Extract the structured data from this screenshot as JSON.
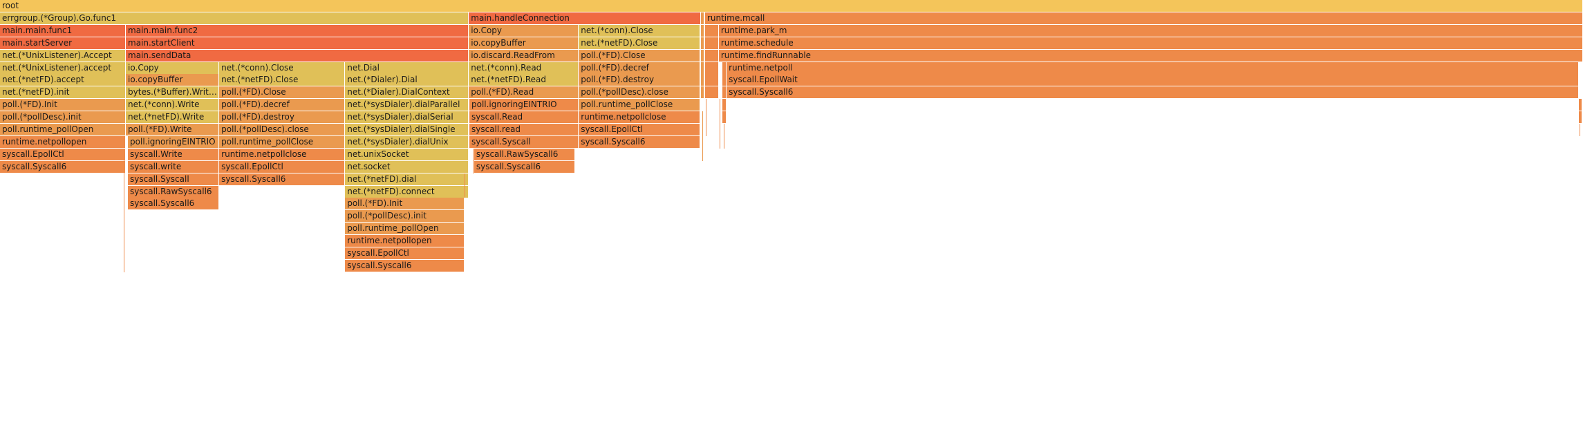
{
  "chart_data": {
    "type": "flamegraph",
    "title": "",
    "colors": {
      "yellow": "#e2b653",
      "gold": "#e0c058",
      "orange": "#ea9a4f",
      "deep": "#ee8a49",
      "red": "#f06a42"
    },
    "frames": [
      {
        "label": "root",
        "depth": 0,
        "start": 0,
        "span": 1.0,
        "color": "yellow"
      },
      {
        "label": "errgroup.(*Group).Go.func1",
        "depth": 1,
        "start": 0,
        "span": 0.2962,
        "color": "gold"
      },
      {
        "label": "main.handleConnection",
        "depth": 1,
        "start": 0.2962,
        "span": 0.1467,
        "color": "red"
      },
      {
        "label": "",
        "depth": 1,
        "start": 0.4429,
        "span": 0.0022,
        "color": "orange"
      },
      {
        "label": "runtime.mcall",
        "depth": 1,
        "start": 0.4454,
        "span": 0.5546,
        "color": "deep"
      },
      {
        "label": "main.main.func1",
        "depth": 2,
        "start": 0,
        "span": 0.0795,
        "color": "red"
      },
      {
        "label": "main.main.func2",
        "depth": 2,
        "start": 0.0795,
        "span": 0.2167,
        "color": "red"
      },
      {
        "label": "io.Copy",
        "depth": 2,
        "start": 0.2962,
        "span": 0.0694,
        "color": "orange"
      },
      {
        "label": "net.(*conn).Close",
        "depth": 2,
        "start": 0.3656,
        "span": 0.0769,
        "color": "gold"
      },
      {
        "label": "",
        "depth": 2,
        "start": 0.4429,
        "span": 0.0022,
        "color": "orange"
      },
      {
        "label": "",
        "depth": 2,
        "start": 0.4454,
        "span": 0.0087,
        "color": "deep"
      },
      {
        "label": "runtime.park_m",
        "depth": 2,
        "start": 0.4541,
        "span": 0.5459,
        "color": "deep"
      },
      {
        "label": "main.startServer",
        "depth": 3,
        "start": 0,
        "span": 0.0795,
        "color": "red"
      },
      {
        "label": "main.startClient",
        "depth": 3,
        "start": 0.0795,
        "span": 0.2167,
        "color": "red"
      },
      {
        "label": "io.copyBuffer",
        "depth": 3,
        "start": 0.2962,
        "span": 0.0694,
        "color": "orange"
      },
      {
        "label": "net.(*netFD).Close",
        "depth": 3,
        "start": 0.3656,
        "span": 0.0769,
        "color": "gold"
      },
      {
        "label": "",
        "depth": 3,
        "start": 0.4429,
        "span": 0.0022,
        "color": "orange"
      },
      {
        "label": "",
        "depth": 3,
        "start": 0.4454,
        "span": 0.0087,
        "color": "deep"
      },
      {
        "label": "runtime.schedule",
        "depth": 3,
        "start": 0.4541,
        "span": 0.5459,
        "color": "deep"
      },
      {
        "label": "net.(*UnixListener).Accept",
        "depth": 4,
        "start": 0,
        "span": 0.0795,
        "color": "gold"
      },
      {
        "label": "main.sendData",
        "depth": 4,
        "start": 0.0795,
        "span": 0.2167,
        "color": "red"
      },
      {
        "label": "io.discard.ReadFrom",
        "depth": 4,
        "start": 0.2962,
        "span": 0.0694,
        "color": "orange"
      },
      {
        "label": "poll.(*FD).Close",
        "depth": 4,
        "start": 0.3656,
        "span": 0.0769,
        "color": "orange"
      },
      {
        "label": "",
        "depth": 4,
        "start": 0.4429,
        "span": 0.0022,
        "color": "orange"
      },
      {
        "label": "",
        "depth": 4,
        "start": 0.4454,
        "span": 0.0087,
        "color": "deep"
      },
      {
        "label": "runtime.findRunnable",
        "depth": 4,
        "start": 0.4541,
        "span": 0.5459,
        "color": "deep"
      },
      {
        "label": "net.(*UnixListener).accept",
        "depth": 5,
        "start": 0,
        "span": 0.0795,
        "color": "gold"
      },
      {
        "label": "io.Copy",
        "depth": 5,
        "start": 0.0795,
        "span": 0.059,
        "color": "gold"
      },
      {
        "label": "net.(*conn).Close",
        "depth": 5,
        "start": 0.1385,
        "span": 0.0795,
        "color": "gold"
      },
      {
        "label": "net.Dial",
        "depth": 5,
        "start": 0.218,
        "span": 0.0782,
        "color": "gold"
      },
      {
        "label": "net.(*conn).Read",
        "depth": 5,
        "start": 0.2962,
        "span": 0.0694,
        "color": "gold"
      },
      {
        "label": "poll.(*FD).decref",
        "depth": 5,
        "start": 0.3656,
        "span": 0.0769,
        "color": "orange"
      },
      {
        "label": "",
        "depth": 5,
        "start": 0.4429,
        "span": 0.0022,
        "color": "orange"
      },
      {
        "label": "",
        "depth": 5,
        "start": 0.4454,
        "span": 0.0087,
        "color": "deep"
      },
      {
        "label": "",
        "depth": 5,
        "start": 0.4563,
        "span": 0.0026,
        "color": "deep"
      },
      {
        "label": "runtime.netpoll",
        "depth": 5,
        "start": 0.459,
        "span": 0.5384,
        "color": "deep"
      },
      {
        "label": "net.(*netFD).accept",
        "depth": 6,
        "start": 0,
        "span": 0.0795,
        "color": "gold"
      },
      {
        "label": "io.copyBuffer",
        "depth": 6,
        "start": 0.0795,
        "span": 0.059,
        "color": "orange"
      },
      {
        "label": "net.(*netFD).Close",
        "depth": 6,
        "start": 0.1385,
        "span": 0.0795,
        "color": "gold"
      },
      {
        "label": "net.(*Dialer).Dial",
        "depth": 6,
        "start": 0.218,
        "span": 0.0782,
        "color": "gold"
      },
      {
        "label": "net.(*netFD).Read",
        "depth": 6,
        "start": 0.2962,
        "span": 0.0694,
        "color": "gold"
      },
      {
        "label": "poll.(*FD).destroy",
        "depth": 6,
        "start": 0.3656,
        "span": 0.0769,
        "color": "orange"
      },
      {
        "label": "",
        "depth": 6,
        "start": 0.4429,
        "span": 0.0022,
        "color": "orange"
      },
      {
        "label": "",
        "depth": 6,
        "start": 0.4454,
        "span": 0.0087,
        "color": "deep"
      },
      {
        "label": "",
        "depth": 6,
        "start": 0.4563,
        "span": 0.0026,
        "color": "deep"
      },
      {
        "label": "syscall.EpollWait",
        "depth": 6,
        "start": 0.459,
        "span": 0.5384,
        "color": "deep"
      },
      {
        "label": "net.(*netFD).init",
        "depth": 7,
        "start": 0,
        "span": 0.0795,
        "color": "gold"
      },
      {
        "label": "bytes.(*Buffer).WriteTo",
        "depth": 7,
        "start": 0.0795,
        "span": 0.059,
        "color": "gold"
      },
      {
        "label": "poll.(*FD).Close",
        "depth": 7,
        "start": 0.1385,
        "span": 0.0795,
        "color": "orange"
      },
      {
        "label": "net.(*Dialer).DialContext",
        "depth": 7,
        "start": 0.218,
        "span": 0.0782,
        "color": "gold"
      },
      {
        "label": "poll.(*FD).Read",
        "depth": 7,
        "start": 0.2962,
        "span": 0.0694,
        "color": "orange"
      },
      {
        "label": "poll.(*pollDesc).close",
        "depth": 7,
        "start": 0.3656,
        "span": 0.0769,
        "color": "orange"
      },
      {
        "label": "",
        "depth": 7,
        "start": 0.4429,
        "span": 0.0022,
        "color": "orange"
      },
      {
        "label": "",
        "depth": 7,
        "start": 0.4454,
        "span": 0.0087,
        "color": "deep"
      },
      {
        "label": "",
        "depth": 7,
        "start": 0.4563,
        "span": 0.0026,
        "color": "deep"
      },
      {
        "label": "syscall.Syscall6",
        "depth": 7,
        "start": 0.459,
        "span": 0.5384,
        "color": "deep"
      },
      {
        "label": "poll.(*FD).Init",
        "depth": 8,
        "start": 0,
        "span": 0.0795,
        "color": "orange"
      },
      {
        "label": "net.(*conn).Write",
        "depth": 8,
        "start": 0.0795,
        "span": 0.059,
        "color": "gold"
      },
      {
        "label": "poll.(*FD).decref",
        "depth": 8,
        "start": 0.1385,
        "span": 0.0795,
        "color": "orange"
      },
      {
        "label": "net.(*sysDialer).dialParallel",
        "depth": 8,
        "start": 0.218,
        "span": 0.0782,
        "color": "gold"
      },
      {
        "label": "poll.ignoringEINTRIO",
        "depth": 8,
        "start": 0.2965,
        "span": 0.0691,
        "color": "deep"
      },
      {
        "label": "poll.runtime_pollClose",
        "depth": 8,
        "start": 0.3656,
        "span": 0.0769,
        "color": "orange"
      },
      {
        "label": "",
        "depth": 8,
        "start": 0.4563,
        "span": 0.0026,
        "color": "deep"
      },
      {
        "label": "",
        "depth": 8,
        "start": 0.9975,
        "span": 0.0022,
        "color": "deep"
      },
      {
        "label": "poll.(*pollDesc).init",
        "depth": 9,
        "start": 0,
        "span": 0.0795,
        "color": "orange"
      },
      {
        "label": "net.(*netFD).Write",
        "depth": 9,
        "start": 0.0795,
        "span": 0.059,
        "color": "gold"
      },
      {
        "label": "poll.(*FD).destroy",
        "depth": 9,
        "start": 0.1385,
        "span": 0.0795,
        "color": "orange"
      },
      {
        "label": "net.(*sysDialer).dialSerial",
        "depth": 9,
        "start": 0.218,
        "span": 0.0782,
        "color": "gold"
      },
      {
        "label": "syscall.Read",
        "depth": 9,
        "start": 0.2965,
        "span": 0.0691,
        "color": "deep"
      },
      {
        "label": "runtime.netpollclose",
        "depth": 9,
        "start": 0.3656,
        "span": 0.0769,
        "color": "deep"
      },
      {
        "label": "",
        "depth": 9,
        "start": 0.4563,
        "span": 0.0026,
        "color": "deep"
      },
      {
        "label": "",
        "depth": 9,
        "start": 0.9975,
        "span": 0.0022,
        "color": "deep"
      },
      {
        "label": "poll.runtime_pollOpen",
        "depth": 10,
        "start": 0,
        "span": 0.0795,
        "color": "orange"
      },
      {
        "label": "poll.(*FD).Write",
        "depth": 10,
        "start": 0.0795,
        "span": 0.059,
        "color": "orange"
      },
      {
        "label": "poll.(*pollDesc).close",
        "depth": 10,
        "start": 0.1385,
        "span": 0.0795,
        "color": "orange"
      },
      {
        "label": "net.(*sysDialer).dialSingle",
        "depth": 10,
        "start": 0.218,
        "span": 0.0782,
        "color": "gold"
      },
      {
        "label": "syscall.read",
        "depth": 10,
        "start": 0.2965,
        "span": 0.0691,
        "color": "deep"
      },
      {
        "label": "syscall.EpollCtl",
        "depth": 10,
        "start": 0.3656,
        "span": 0.0769,
        "color": "deep"
      },
      {
        "label": "runtime.netpollopen",
        "depth": 11,
        "start": 0,
        "span": 0.0795,
        "color": "deep"
      },
      {
        "label": "poll.ignoringEINTRIO",
        "depth": 11,
        "start": 0.0808,
        "span": 0.0577,
        "color": "orange"
      },
      {
        "label": "poll.runtime_pollClose",
        "depth": 11,
        "start": 0.1385,
        "span": 0.0795,
        "color": "orange"
      },
      {
        "label": "net.(*sysDialer).dialUnix",
        "depth": 11,
        "start": 0.218,
        "span": 0.0782,
        "color": "gold"
      },
      {
        "label": "syscall.Syscall",
        "depth": 11,
        "start": 0.2965,
        "span": 0.0691,
        "color": "deep"
      },
      {
        "label": "syscall.Syscall6",
        "depth": 11,
        "start": 0.3656,
        "span": 0.0769,
        "color": "deep"
      },
      {
        "label": "syscall.EpollCtl",
        "depth": 12,
        "start": 0,
        "span": 0.0795,
        "color": "deep"
      },
      {
        "label": "syscall.Write",
        "depth": 12,
        "start": 0.0808,
        "span": 0.0577,
        "color": "deep"
      },
      {
        "label": "runtime.netpollclose",
        "depth": 12,
        "start": 0.1385,
        "span": 0.0795,
        "color": "deep"
      },
      {
        "label": "net.unixSocket",
        "depth": 12,
        "start": 0.218,
        "span": 0.0782,
        "color": "gold"
      },
      {
        "label": "syscall.RawSyscall6",
        "depth": 12,
        "start": 0.2995,
        "span": 0.0638,
        "color": "deep"
      },
      {
        "label": "syscall.Syscall6",
        "depth": 13,
        "start": 0,
        "span": 0.0795,
        "color": "deep"
      },
      {
        "label": "syscall.write",
        "depth": 13,
        "start": 0.0808,
        "span": 0.0577,
        "color": "deep"
      },
      {
        "label": "syscall.EpollCtl",
        "depth": 13,
        "start": 0.1385,
        "span": 0.0795,
        "color": "deep"
      },
      {
        "label": "net.socket",
        "depth": 13,
        "start": 0.218,
        "span": 0.0782,
        "color": "gold"
      },
      {
        "label": "syscall.Syscall6",
        "depth": 13,
        "start": 0.2995,
        "span": 0.0638,
        "color": "deep"
      },
      {
        "label": "syscall.Syscall",
        "depth": 14,
        "start": 0.0808,
        "span": 0.0577,
        "color": "deep"
      },
      {
        "label": "syscall.Syscall6",
        "depth": 14,
        "start": 0.1385,
        "span": 0.0795,
        "color": "deep"
      },
      {
        "label": "net.(*netFD).dial",
        "depth": 14,
        "start": 0.218,
        "span": 0.0782,
        "color": "gold"
      },
      {
        "label": "syscall.RawSyscall6",
        "depth": 15,
        "start": 0.0808,
        "span": 0.0577,
        "color": "deep"
      },
      {
        "label": "net.(*netFD).connect",
        "depth": 15,
        "start": 0.218,
        "span": 0.0782,
        "color": "gold"
      },
      {
        "label": "syscall.Syscall6",
        "depth": 16,
        "start": 0.0808,
        "span": 0.0577,
        "color": "deep"
      },
      {
        "label": "poll.(*FD).Init",
        "depth": 16,
        "start": 0.218,
        "span": 0.0756,
        "color": "orange"
      },
      {
        "label": "poll.(*pollDesc).init",
        "depth": 17,
        "start": 0.218,
        "span": 0.0756,
        "color": "orange"
      },
      {
        "label": "poll.runtime_pollOpen",
        "depth": 18,
        "start": 0.218,
        "span": 0.0756,
        "color": "orange"
      },
      {
        "label": "runtime.netpollopen",
        "depth": 19,
        "start": 0.218,
        "span": 0.0756,
        "color": "deep"
      },
      {
        "label": "syscall.EpollCtl",
        "depth": 20,
        "start": 0.218,
        "span": 0.0756,
        "color": "deep"
      },
      {
        "label": "syscall.Syscall6",
        "depth": 21,
        "start": 0.218,
        "span": 0.0756,
        "color": "deep"
      }
    ],
    "ticks": [
      {
        "start": 0.0782,
        "from_depth": 12,
        "to_depth": 22,
        "color": "deep"
      },
      {
        "start": 0.2934,
        "from_depth": 14,
        "to_depth": 16,
        "color": "deep"
      },
      {
        "start": 0.2987,
        "from_depth": 12,
        "to_depth": 14,
        "color": "deep"
      },
      {
        "start": 0.4435,
        "from_depth": 9,
        "to_depth": 13,
        "color": "orange"
      },
      {
        "start": 0.4459,
        "from_depth": 8,
        "to_depth": 11,
        "color": "deep"
      },
      {
        "start": 0.4548,
        "from_depth": 8,
        "to_depth": 12,
        "color": "deep"
      },
      {
        "start": 0.457,
        "from_depth": 10,
        "to_depth": 12,
        "color": "deep"
      },
      {
        "start": 0.998,
        "from_depth": 10,
        "to_depth": 11,
        "color": "deep"
      }
    ]
  }
}
